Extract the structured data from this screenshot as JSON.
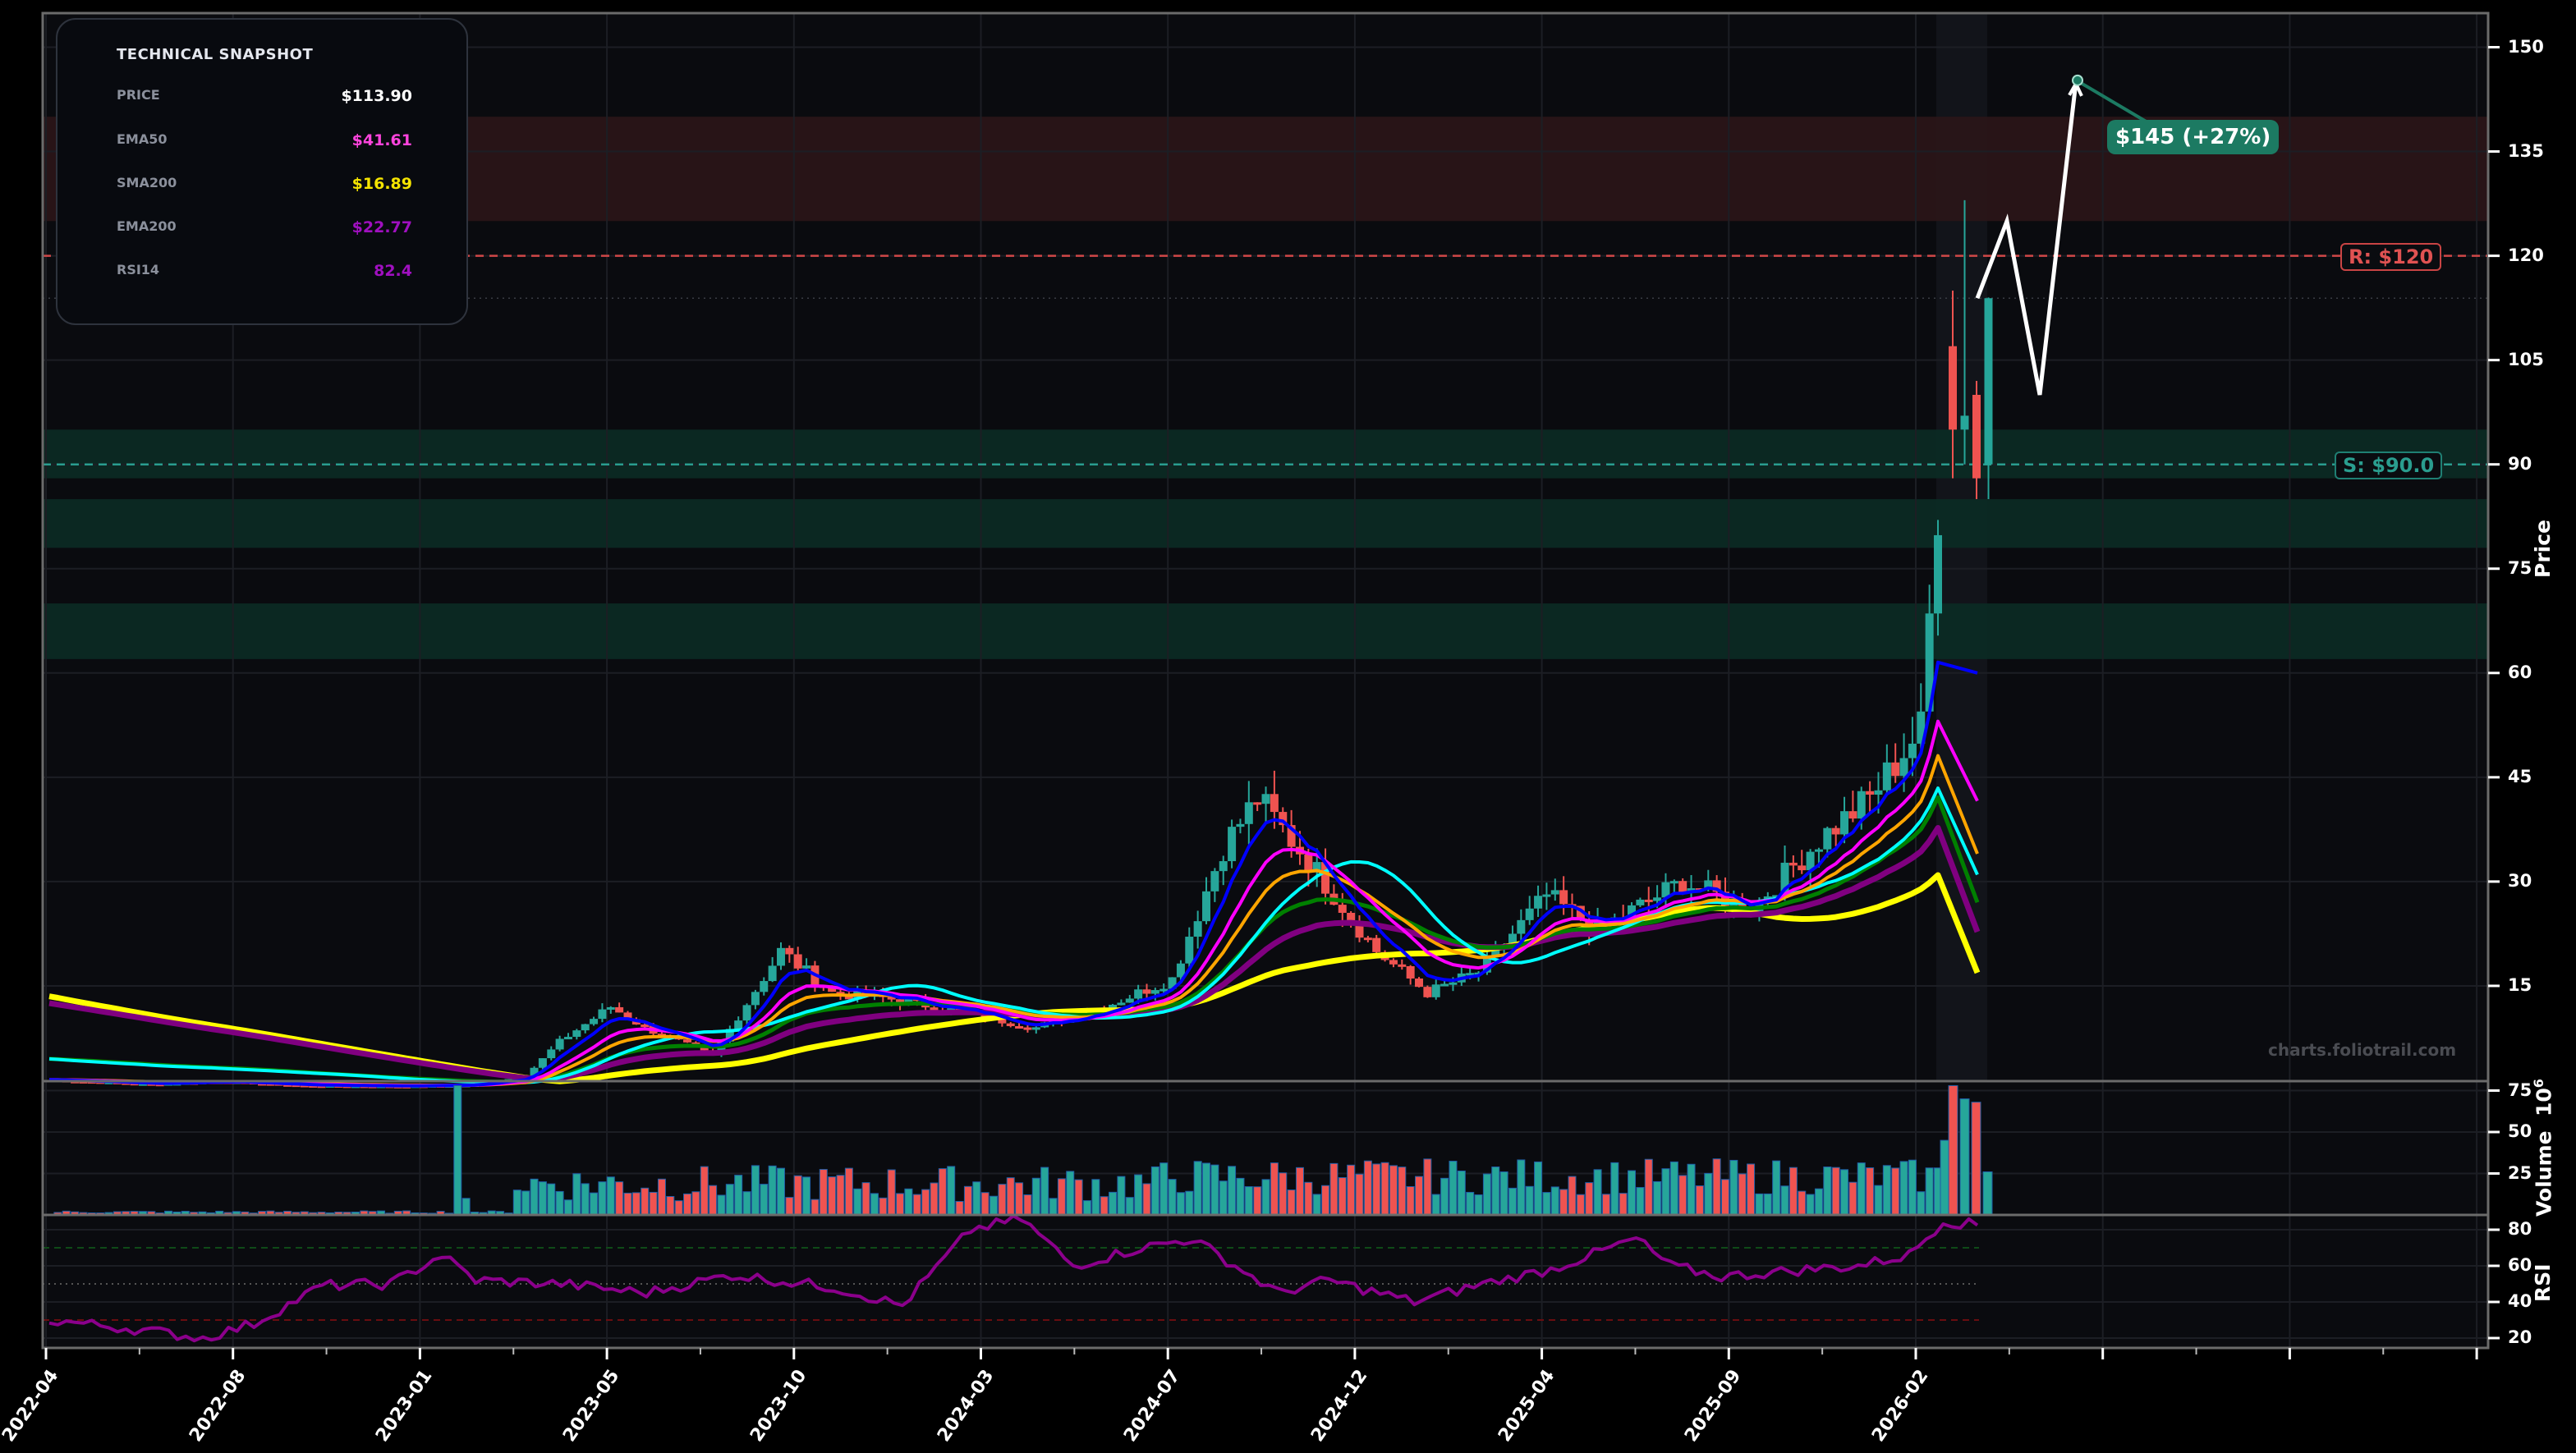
{
  "snapshot": {
    "title": "TECHNICAL SNAPSHOT",
    "rows": [
      {
        "label": "PRICE",
        "value": "$113.90",
        "color": "#ffffff"
      },
      {
        "label": "EMA50",
        "value": "$41.61",
        "color": "#ff44dd"
      },
      {
        "label": "SMA200",
        "value": "$16.89",
        "color": "#f5e400"
      },
      {
        "label": "EMA200",
        "value": "$22.77",
        "color": "#a010c0"
      },
      {
        "label": "RSI14",
        "value": "82.4",
        "color": "#a010c0"
      }
    ]
  },
  "levels": {
    "resistance": {
      "label": "R: $120",
      "price": 120,
      "color": "#e05252"
    },
    "support": {
      "label": "S: $90.0",
      "price": 90,
      "color": "#2a9d8f"
    }
  },
  "target": {
    "label": "$145 (+27%)",
    "price": 145,
    "color": "#1c7a62"
  },
  "watermark": "charts.foliotrail.com",
  "axes": {
    "price_title": "Price",
    "volume_title": "Volume",
    "volume_exponent": "10",
    "volume_exponent_power": "6",
    "rsi_title": "RSI",
    "price_ticks": [
      "15",
      "30",
      "45",
      "60",
      "75",
      "90",
      "105",
      "120",
      "135",
      "150"
    ],
    "volume_ticks": [
      "25",
      "50",
      "75"
    ],
    "rsi_ticks": [
      "20",
      "40",
      "60",
      "80"
    ],
    "x_ticks": [
      "2022-04",
      "2022-08",
      "2023-01",
      "2023-05",
      "2023-10",
      "2024-03",
      "2024-07",
      "2024-12",
      "2025-04",
      "2025-09",
      "2026-02"
    ]
  },
  "colors": {
    "background": "#000000",
    "panel": "#0a0b0f",
    "up": "#26a69a",
    "down": "#ef5350",
    "grid": "#1c1e24",
    "border": "#6b6b6b",
    "resistance_zone": "#2a1518",
    "support_zone": "#0c2a24"
  },
  "chart_data": [
    {
      "type": "candlestick",
      "title": "Price",
      "ylabel": "Price",
      "ylim": [
        0,
        155
      ],
      "x_ticks": [
        "2022-04",
        "2022-08",
        "2023-01",
        "2023-05",
        "2023-10",
        "2024-03",
        "2024-07",
        "2024-12",
        "2025-04",
        "2025-09",
        "2026-02"
      ],
      "y_ticks": [
        15,
        30,
        45,
        60,
        75,
        90,
        105,
        120,
        135,
        150
      ],
      "zones": [
        {
          "type": "resistance",
          "from": 125,
          "to": 140
        },
        {
          "type": "support",
          "from": 88,
          "to": 95
        },
        {
          "type": "support",
          "from": 78,
          "to": 85
        },
        {
          "type": "support",
          "from": 62,
          "to": 70
        }
      ],
      "lines": [
        {
          "name": "R: $120",
          "y": 120,
          "style": "dashed"
        },
        {
          "name": "S: $90.0",
          "y": 90,
          "style": "dashed"
        }
      ],
      "ohlc_keypoints": [
        {
          "date": "2022-04",
          "close": 1.5
        },
        {
          "date": "2022-08",
          "close": 1.2
        },
        {
          "date": "2023-01",
          "close": 0.8
        },
        {
          "date": "2023-05",
          "close": 4
        },
        {
          "date": "2023-08",
          "close": 12
        },
        {
          "date": "2023-10",
          "close": 8
        },
        {
          "date": "2024-01",
          "close": 20
        },
        {
          "date": "2024-03",
          "close": 13
        },
        {
          "date": "2024-07",
          "close": 10
        },
        {
          "date": "2024-11",
          "close": 35
        },
        {
          "date": "2024-12",
          "close": 38
        },
        {
          "date": "2025-02",
          "close": 22
        },
        {
          "date": "2025-04",
          "close": 16
        },
        {
          "date": "2025-06",
          "close": 28
        },
        {
          "date": "2025-09",
          "close": 30
        },
        {
          "date": "2025-12",
          "close": 40
        },
        {
          "date": "2026-02",
          "close": 84
        },
        {
          "date": "2026-02b",
          "open": 107,
          "close": 95,
          "high": 115,
          "low": 88
        },
        {
          "date": "2026-02c",
          "open": 95,
          "close": 97,
          "high": 128,
          "low": 90
        },
        {
          "date": "2026-03",
          "open": 100,
          "close": 88,
          "high": 102,
          "low": 85
        },
        {
          "date": "2026-03b",
          "open": 90,
          "close": 113.9,
          "high": 114,
          "low": 85
        }
      ],
      "forecast_path": [
        113.9,
        125,
        100,
        145
      ],
      "series": [
        {
          "name": "EMA (blue)",
          "color": "#0000ff",
          "last": 60
        },
        {
          "name": "EMA50",
          "color": "#ff00ff",
          "last": 41.61
        },
        {
          "name": "orange MA",
          "color": "#ffa500",
          "last": 34
        },
        {
          "name": "cyan MA",
          "color": "#00ffff",
          "last": 31
        },
        {
          "name": "green MA",
          "color": "#008000",
          "last": 27
        },
        {
          "name": "EMA200",
          "color": "#800080",
          "last": 22.77
        },
        {
          "name": "SMA200",
          "color": "#ffff00",
          "last": 16.89
        }
      ]
    },
    {
      "type": "bar",
      "title": "Volume",
      "ylabel": "Volume 10^6",
      "ylim": [
        0,
        80
      ],
      "y_ticks": [
        25,
        50,
        75
      ],
      "notable": [
        {
          "date": "2022-08",
          "value": 78
        },
        {
          "date": "2026-02",
          "value": 78
        },
        {
          "date": "2026-03",
          "value": 68
        }
      ]
    },
    {
      "type": "line",
      "title": "RSI",
      "ylabel": "RSI",
      "ylim": [
        15,
        90
      ],
      "y_ticks": [
        20,
        40,
        60,
        80
      ],
      "guides": [
        70,
        50,
        30
      ],
      "last": 82.4
    }
  ]
}
